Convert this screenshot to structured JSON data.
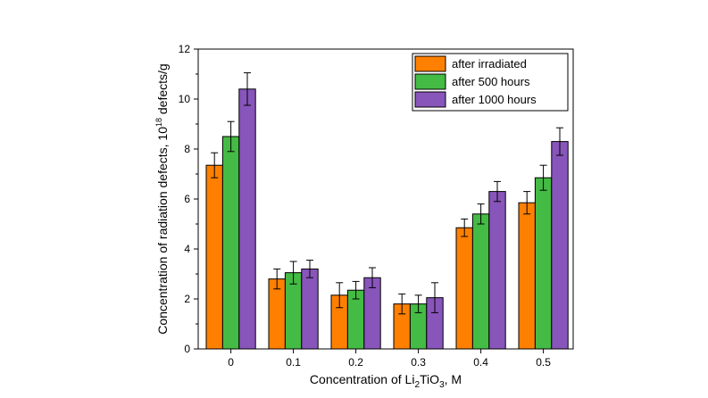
{
  "chart_data": {
    "type": "bar",
    "categories": [
      "0",
      "0.1",
      "0.2",
      "0.3",
      "0.4",
      "0.5"
    ],
    "series": [
      {
        "name": "after irradiated",
        "color": "#ff8000",
        "values": [
          7.35,
          2.8,
          2.15,
          1.8,
          4.85,
          5.85
        ],
        "errors": [
          0.5,
          0.4,
          0.5,
          0.4,
          0.35,
          0.45
        ]
      },
      {
        "name": "after 500 hours",
        "color": "#44bb44",
        "values": [
          8.5,
          3.05,
          2.35,
          1.8,
          5.4,
          6.85
        ],
        "errors": [
          0.6,
          0.45,
          0.35,
          0.35,
          0.4,
          0.5
        ]
      },
      {
        "name": "after 1000 hours",
        "color": "#8855bb",
        "values": [
          10.4,
          3.2,
          2.85,
          2.05,
          6.3,
          8.3
        ],
        "errors": [
          0.65,
          0.35,
          0.4,
          0.6,
          0.4,
          0.55
        ]
      }
    ],
    "xlabel": {
      "pre": "Concentration of Li",
      "sub1": "2",
      "mid": "TiO",
      "sub2": "3",
      "post": ", M"
    },
    "ylabel": {
      "pre": "Concentration of radiation defects, 10",
      "sup": "18",
      "post": " defects/g"
    },
    "ylim": [
      0,
      12
    ],
    "yticks": [
      "0",
      "2",
      "4",
      "6",
      "8",
      "10",
      "12"
    ],
    "grid": false,
    "legend": "top-right"
  }
}
